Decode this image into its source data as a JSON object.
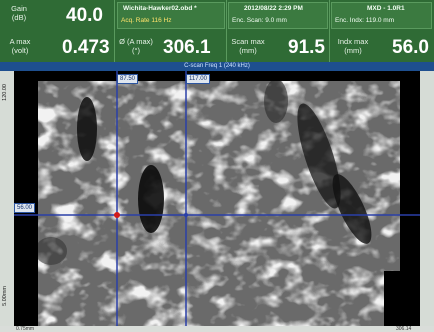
{
  "header": {
    "gain_label": "Gain\n(dB)",
    "gain_value": "40.0",
    "file_name": "Wichita-Hawker02.obd *",
    "datetime": "2012/08/22 2:29 PM",
    "device": "MXD - 1.0R1",
    "acq_rate": "Acq. Rate 116 Hz",
    "enc_scan": "Enc. Scan: 9.0 mm",
    "enc_indx": "Enc. Indx: 119.0 mm",
    "amax_label": "A max\n(volt)",
    "amax_value": "0.473",
    "phase_label": "Ø (A max)\n(°)",
    "phase_value": "306.1",
    "scanmax_label": "Scan max\n(mm)",
    "scanmax_value": "91.5",
    "indxmax_label": "Indx max\n(mm)",
    "indxmax_value": "56.0"
  },
  "view": {
    "title": "C-scan Freq 1 (240 kHz)",
    "cursor_x1": "87.50",
    "cursor_x2": "117.00",
    "cursor_y": "56.00",
    "y_top": "120.00",
    "y_bottom": "5.00mm",
    "x_left": "0.75mm",
    "x_right": "306.14"
  },
  "colors": {
    "header_bg": "#2f6b35",
    "cursor": "#2a3fa8",
    "marker": "#d11a1a"
  }
}
